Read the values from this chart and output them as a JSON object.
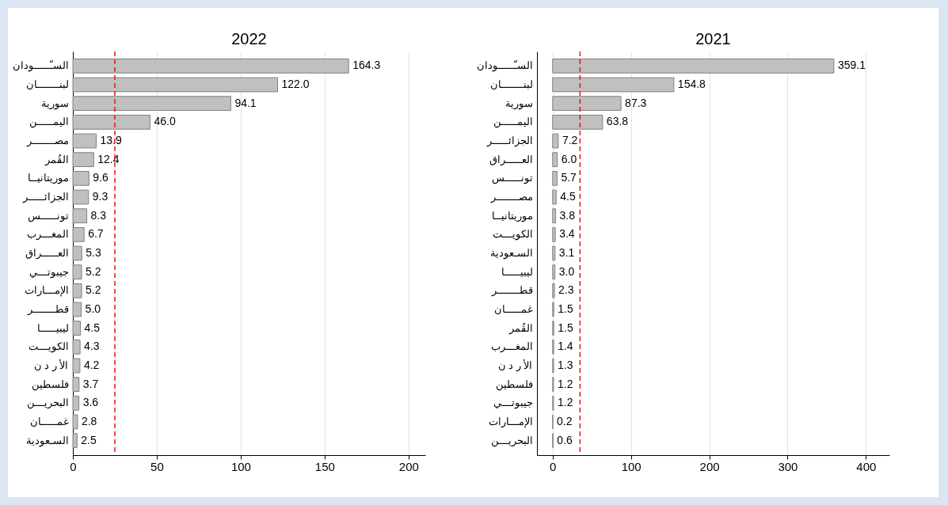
{
  "chart_data": [
    {
      "type": "bar",
      "orientation": "horizontal",
      "title": "2022",
      "color": "#c0c0c0",
      "grid": "x",
      "categories": [
        "السـّـــــودان",
        "لبنـــــــان",
        "سورية",
        "اليمـــــن",
        "مصـــــــر",
        "القُمر",
        "موريتانيــا",
        "الجزائـــــر",
        "تونـــــس",
        "المغـــرب",
        "العـــــراق",
        "جيبوتـــي",
        "الإمـــارات",
        "قطـــــــر",
        "ليبيـــــا",
        "الكويـــت",
        "الأ ر د ن",
        "فلسطين",
        "البحريـــن",
        "غمـــــان",
        "السـعودية"
      ],
      "values": [
        164.3,
        122.0,
        94.1,
        46.0,
        13.9,
        12.4,
        9.6,
        9.3,
        8.3,
        6.7,
        5.3,
        5.2,
        5.2,
        5.0,
        4.5,
        4.3,
        4.2,
        3.7,
        3.6,
        2.8,
        2.5
      ],
      "value_labels": [
        "164.3",
        "122.0",
        "94.1",
        "46.0",
        "13.9",
        "12.4",
        "9.6",
        "9.3",
        "8.3",
        "6.7",
        "5.3",
        "5.2",
        "5.2",
        "5.0",
        "4.5",
        "4.3",
        "4.2",
        "3.7",
        "3.6",
        "2.8",
        "2.5"
      ],
      "xlim": [
        0,
        210
      ],
      "xticks": [
        0,
        50,
        100,
        150,
        200
      ],
      "ref_lines": [
        {
          "axis": "x",
          "value": 25,
          "color": "#e8141c",
          "line_style": "dashed"
        }
      ]
    },
    {
      "type": "bar",
      "orientation": "horizontal",
      "title": "2021",
      "color": "#c0c0c0",
      "grid": "x",
      "categories": [
        "السـّـــــودان",
        "لبنـــــــان",
        "سورية",
        "اليمـــــن",
        "الجزائـــــر",
        "العـــــراق",
        "تونـــــس",
        "مصـــــــر",
        "موريتانيــا",
        "الكويـــت",
        "السـعودية",
        "ليبيـــــا",
        "قطـــــــر",
        "غمـــــان",
        "القُمر",
        "المغـــرب",
        "الأ ر د ن",
        "فلسطين",
        "جيبوتـــي",
        "الإمـــارات",
        "البحريـــن"
      ],
      "values": [
        359.1,
        154.8,
        87.3,
        63.8,
        7.2,
        6.0,
        5.7,
        4.5,
        3.8,
        3.4,
        3.1,
        3.0,
        2.3,
        1.5,
        1.5,
        1.4,
        1.3,
        1.2,
        1.2,
        0.2,
        0.6
      ],
      "value_labels": [
        "359.1",
        "154.8",
        "87.3",
        "63.8",
        "7.2",
        "6.0",
        "5.7",
        "4.5",
        "3.8",
        "3.4",
        "3.1",
        "3.0",
        "2.3",
        "1.5",
        "1.5",
        "1.4",
        "1.3",
        "1.2",
        "1.2",
        "0.2",
        "0.6"
      ],
      "xlim": [
        -20,
        430
      ],
      "xticks": [
        0,
        100,
        200,
        300,
        400
      ],
      "ref_lines": [
        {
          "axis": "x",
          "value": 35,
          "color": "#e8141c",
          "line_style": "dashed"
        }
      ]
    }
  ]
}
